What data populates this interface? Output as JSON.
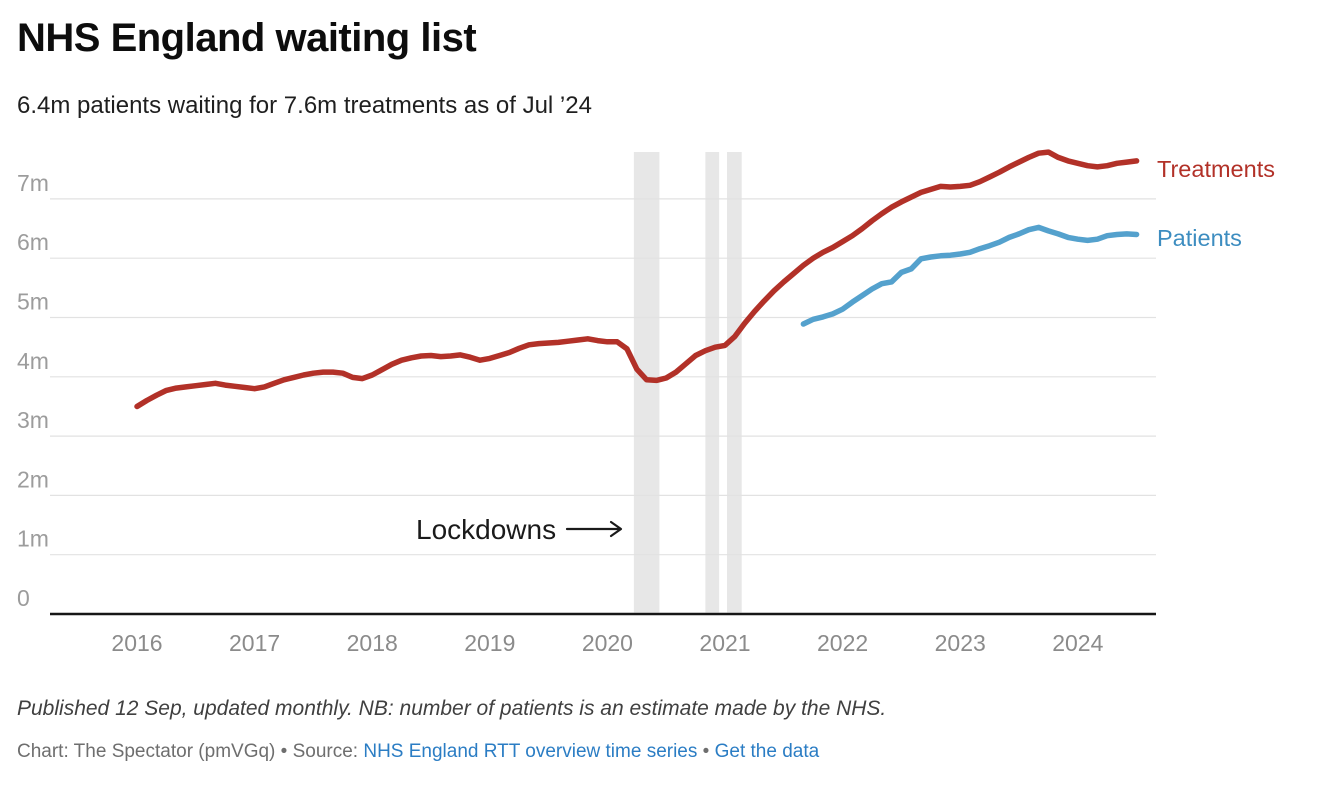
{
  "header": {
    "title": "NHS England waiting list",
    "subtitle": "6.4m patients waiting for 7.6m treatments as of Jul ’24"
  },
  "annotation": {
    "lockdowns_label": "Lockdowns"
  },
  "footer": {
    "note": "Published 12 Sep, updated monthly. NB: number of patients is an estimate made by the NHS.",
    "credit_prefix": "Chart: The Spectator (pmVGq) • Source: ",
    "source_link": "NHS England RTT overview time series",
    "separator": " • ",
    "data_link": "Get the data"
  },
  "colors": {
    "treatments": "#b23128",
    "patients_line": "#54a1cd",
    "patients_label": "#3d8dc0",
    "grid": "#e2e2e2",
    "band": "#e7e7e7",
    "axis": "#161616",
    "y_tick": "#9c9c9c",
    "x_tick": "#8b8b8b",
    "annotation": "#1a1a1a",
    "link": "#2b7dc4"
  },
  "chart_data": {
    "type": "line",
    "title": "NHS England waiting list",
    "subtitle": "6.4m patients waiting for 7.6m treatments as of Jul ’24",
    "x_unit": "months_since_jan_2016",
    "x_year_ticks": [
      2016,
      2017,
      2018,
      2019,
      2020,
      2021,
      2022,
      2023,
      2024
    ],
    "y_ticks": [
      {
        "value": 7,
        "label": "7m"
      },
      {
        "value": 6,
        "label": "6m"
      },
      {
        "value": 5,
        "label": "5m"
      },
      {
        "value": 4,
        "label": "4m"
      },
      {
        "value": 3,
        "label": "3m"
      },
      {
        "value": 2,
        "label": "2m"
      },
      {
        "value": 1,
        "label": "1m"
      },
      {
        "value": 0,
        "label": "0"
      }
    ],
    "ylim": [
      0,
      7.9
    ],
    "grid": true,
    "legend_position": "right-of-line-ends",
    "lockdown_bands_months": [
      [
        50.7,
        53.3
      ],
      [
        58.0,
        59.4
      ],
      [
        60.2,
        61.7
      ]
    ],
    "series": [
      {
        "name": "Treatments",
        "start_month": 0,
        "start_date": "Jan 2016",
        "end_date": "Jul 2024",
        "values": [
          3.5,
          3.6,
          3.69,
          3.77,
          3.81,
          3.83,
          3.85,
          3.87,
          3.89,
          3.86,
          3.84,
          3.82,
          3.8,
          3.83,
          3.89,
          3.95,
          3.99,
          4.03,
          4.06,
          4.08,
          4.08,
          4.06,
          3.99,
          3.97,
          4.03,
          4.12,
          4.21,
          4.28,
          4.32,
          4.35,
          4.36,
          4.34,
          4.35,
          4.37,
          4.33,
          4.28,
          4.31,
          4.36,
          4.41,
          4.48,
          4.54,
          4.56,
          4.57,
          4.58,
          4.6,
          4.62,
          4.64,
          4.61,
          4.59,
          4.59,
          4.47,
          4.13,
          3.95,
          3.94,
          3.98,
          4.08,
          4.22,
          4.36,
          4.44,
          4.5,
          4.53,
          4.68,
          4.9,
          5.1,
          5.28,
          5.45,
          5.6,
          5.74,
          5.88,
          6.0,
          6.1,
          6.18,
          6.28,
          6.38,
          6.5,
          6.63,
          6.75,
          6.86,
          6.95,
          7.03,
          7.11,
          7.16,
          7.21,
          7.2,
          7.21,
          7.23,
          7.29,
          7.37,
          7.45,
          7.54,
          7.62,
          7.7,
          7.77,
          7.79,
          7.7,
          7.64,
          7.6,
          7.56,
          7.54,
          7.56,
          7.6,
          7.62,
          7.64
        ]
      },
      {
        "name": "Patients",
        "start_month": 68,
        "start_date": "Sep 2021",
        "end_date": "Jul 2024",
        "values": [
          4.89,
          4.97,
          5.01,
          5.06,
          5.14,
          5.26,
          5.37,
          5.48,
          5.57,
          5.6,
          5.76,
          5.82,
          5.99,
          6.02,
          6.04,
          6.05,
          6.07,
          6.1,
          6.16,
          6.21,
          6.27,
          6.35,
          6.41,
          6.48,
          6.52,
          6.46,
          6.41,
          6.35,
          6.32,
          6.3,
          6.32,
          6.38,
          6.4,
          6.41,
          6.4
        ]
      }
    ]
  }
}
